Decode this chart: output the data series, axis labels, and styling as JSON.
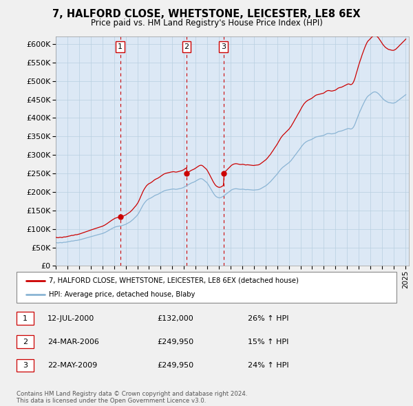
{
  "title": "7, HALFORD CLOSE, WHETSTONE, LEICESTER, LE8 6EX",
  "subtitle": "Price paid vs. HM Land Registry's House Price Index (HPI)",
  "ylim": [
    0,
    620000
  ],
  "yticks": [
    0,
    50000,
    100000,
    150000,
    200000,
    250000,
    300000,
    350000,
    400000,
    450000,
    500000,
    550000,
    600000
  ],
  "xlim_start": 1995.3,
  "xlim_end": 2025.3,
  "sale_color": "#cc0000",
  "hpi_color": "#8ab4d4",
  "sale_label": "7, HALFORD CLOSE, WHETSTONE, LEICESTER, LE8 6EX (detached house)",
  "hpi_label": "HPI: Average price, detached house, Blaby",
  "sales": [
    {
      "date_num": 2000.53,
      "price": 132000,
      "label": "1"
    },
    {
      "date_num": 2006.22,
      "price": 249950,
      "label": "2"
    },
    {
      "date_num": 2009.39,
      "price": 249950,
      "label": "3"
    }
  ],
  "sale_annotations": [
    {
      "label": "1",
      "date": "12-JUL-2000",
      "price": "£132,000",
      "change": "26% ↑ HPI"
    },
    {
      "label": "2",
      "date": "24-MAR-2006",
      "price": "£249,950",
      "change": "15% ↑ HPI"
    },
    {
      "label": "3",
      "date": "22-MAY-2009",
      "price": "£249,950",
      "change": "24% ↑ HPI"
    }
  ],
  "footer": "Contains HM Land Registry data © Crown copyright and database right 2024.\nThis data is licensed under the Open Government Licence v3.0.",
  "hpi_raw": [
    [
      1995.04,
      63000
    ],
    [
      1995.12,
      62500
    ],
    [
      1995.21,
      62200
    ],
    [
      1995.29,
      62800
    ],
    [
      1995.38,
      63200
    ],
    [
      1995.46,
      63000
    ],
    [
      1995.54,
      62500
    ],
    [
      1995.63,
      63500
    ],
    [
      1995.71,
      64000
    ],
    [
      1995.79,
      63800
    ],
    [
      1995.88,
      64200
    ],
    [
      1995.96,
      64800
    ],
    [
      1996.04,
      65200
    ],
    [
      1996.12,
      65800
    ],
    [
      1996.21,
      66200
    ],
    [
      1996.29,
      66800
    ],
    [
      1996.38,
      67500
    ],
    [
      1996.46,
      67200
    ],
    [
      1996.54,
      67800
    ],
    [
      1996.63,
      68500
    ],
    [
      1996.71,
      69000
    ],
    [
      1996.79,
      68800
    ],
    [
      1996.88,
      69500
    ],
    [
      1996.96,
      70000
    ],
    [
      1997.04,
      70500
    ],
    [
      1997.12,
      71200
    ],
    [
      1997.21,
      72000
    ],
    [
      1997.29,
      72800
    ],
    [
      1997.38,
      73500
    ],
    [
      1997.46,
      74200
    ],
    [
      1997.54,
      75000
    ],
    [
      1997.63,
      75800
    ],
    [
      1997.71,
      76500
    ],
    [
      1997.79,
      77200
    ],
    [
      1997.88,
      78000
    ],
    [
      1997.96,
      78800
    ],
    [
      1998.04,
      79500
    ],
    [
      1998.12,
      80200
    ],
    [
      1998.21,
      81000
    ],
    [
      1998.29,
      81800
    ],
    [
      1998.38,
      82500
    ],
    [
      1998.46,
      83200
    ],
    [
      1998.54,
      83800
    ],
    [
      1998.63,
      84500
    ],
    [
      1998.71,
      85200
    ],
    [
      1998.79,
      85800
    ],
    [
      1998.88,
      86500
    ],
    [
      1998.96,
      87200
    ],
    [
      1999.04,
      88000
    ],
    [
      1999.12,
      89000
    ],
    [
      1999.21,
      90200
    ],
    [
      1999.29,
      91500
    ],
    [
      1999.38,
      93000
    ],
    [
      1999.46,
      94500
    ],
    [
      1999.54,
      96000
    ],
    [
      1999.63,
      97500
    ],
    [
      1999.71,
      99000
    ],
    [
      1999.79,
      100500
    ],
    [
      1999.88,
      102000
    ],
    [
      1999.96,
      103500
    ],
    [
      2000.04,
      104500
    ],
    [
      2000.12,
      105500
    ],
    [
      2000.21,
      106200
    ],
    [
      2000.29,
      106800
    ],
    [
      2000.38,
      107200
    ],
    [
      2000.46,
      107500
    ],
    [
      2000.54,
      107800
    ],
    [
      2000.63,
      108500
    ],
    [
      2000.71,
      109200
    ],
    [
      2000.79,
      110000
    ],
    [
      2000.88,
      111000
    ],
    [
      2000.96,
      112000
    ],
    [
      2001.04,
      113000
    ],
    [
      2001.12,
      114500
    ],
    [
      2001.21,
      116000
    ],
    [
      2001.29,
      117500
    ],
    [
      2001.38,
      119000
    ],
    [
      2001.46,
      121000
    ],
    [
      2001.54,
      123000
    ],
    [
      2001.63,
      125500
    ],
    [
      2001.71,
      128000
    ],
    [
      2001.79,
      130500
    ],
    [
      2001.88,
      133000
    ],
    [
      2001.96,
      136000
    ],
    [
      2002.04,
      139000
    ],
    [
      2002.12,
      143000
    ],
    [
      2002.21,
      148000
    ],
    [
      2002.29,
      153000
    ],
    [
      2002.38,
      158000
    ],
    [
      2002.46,
      163000
    ],
    [
      2002.54,
      167000
    ],
    [
      2002.63,
      171000
    ],
    [
      2002.71,
      174000
    ],
    [
      2002.79,
      177000
    ],
    [
      2002.88,
      179000
    ],
    [
      2002.96,
      181000
    ],
    [
      2003.04,
      182000
    ],
    [
      2003.12,
      183000
    ],
    [
      2003.21,
      184500
    ],
    [
      2003.29,
      186000
    ],
    [
      2003.38,
      188000
    ],
    [
      2003.46,
      189500
    ],
    [
      2003.54,
      191000
    ],
    [
      2003.63,
      192000
    ],
    [
      2003.71,
      193000
    ],
    [
      2003.79,
      194000
    ],
    [
      2003.88,
      195500
    ],
    [
      2003.96,
      197000
    ],
    [
      2004.04,
      198500
    ],
    [
      2004.12,
      200000
    ],
    [
      2004.21,
      201500
    ],
    [
      2004.29,
      202800
    ],
    [
      2004.38,
      203800
    ],
    [
      2004.46,
      204500
    ],
    [
      2004.54,
      205000
    ],
    [
      2004.63,
      205500
    ],
    [
      2004.71,
      206000
    ],
    [
      2004.79,
      206500
    ],
    [
      2004.88,
      207000
    ],
    [
      2004.96,
      207500
    ],
    [
      2005.04,
      207800
    ],
    [
      2005.12,
      208000
    ],
    [
      2005.21,
      207500
    ],
    [
      2005.29,
      207000
    ],
    [
      2005.38,
      207200
    ],
    [
      2005.46,
      207800
    ],
    [
      2005.54,
      208500
    ],
    [
      2005.63,
      209000
    ],
    [
      2005.71,
      209500
    ],
    [
      2005.79,
      210000
    ],
    [
      2005.88,
      211000
    ],
    [
      2005.96,
      212000
    ],
    [
      2006.04,
      213500
    ],
    [
      2006.12,
      215000
    ],
    [
      2006.21,
      216500
    ],
    [
      2006.29,
      218000
    ],
    [
      2006.38,
      219500
    ],
    [
      2006.46,
      221000
    ],
    [
      2006.54,
      222500
    ],
    [
      2006.63,
      224000
    ],
    [
      2006.71,
      225000
    ],
    [
      2006.79,
      226000
    ],
    [
      2006.88,
      227000
    ],
    [
      2006.96,
      228500
    ],
    [
      2007.04,
      230000
    ],
    [
      2007.12,
      231500
    ],
    [
      2007.21,
      233000
    ],
    [
      2007.29,
      234500
    ],
    [
      2007.38,
      235500
    ],
    [
      2007.46,
      236000
    ],
    [
      2007.54,
      235500
    ],
    [
      2007.63,
      234000
    ],
    [
      2007.71,
      232000
    ],
    [
      2007.79,
      230000
    ],
    [
      2007.88,
      228000
    ],
    [
      2007.96,
      225500
    ],
    [
      2008.04,
      222000
    ],
    [
      2008.12,
      218000
    ],
    [
      2008.21,
      213500
    ],
    [
      2008.29,
      209000
    ],
    [
      2008.38,
      204500
    ],
    [
      2008.46,
      200000
    ],
    [
      2008.54,
      196000
    ],
    [
      2008.63,
      192000
    ],
    [
      2008.71,
      189000
    ],
    [
      2008.79,
      187000
    ],
    [
      2008.88,
      185500
    ],
    [
      2008.96,
      184500
    ],
    [
      2009.04,
      184000
    ],
    [
      2009.12,
      184500
    ],
    [
      2009.21,
      185500
    ],
    [
      2009.29,
      187000
    ],
    [
      2009.38,
      188500
    ],
    [
      2009.46,
      190500
    ],
    [
      2009.54,
      192500
    ],
    [
      2009.63,
      194500
    ],
    [
      2009.71,
      196500
    ],
    [
      2009.79,
      198500
    ],
    [
      2009.88,
      200500
    ],
    [
      2009.96,
      202500
    ],
    [
      2010.04,
      204500
    ],
    [
      2010.12,
      206000
    ],
    [
      2010.21,
      207200
    ],
    [
      2010.29,
      208000
    ],
    [
      2010.38,
      208500
    ],
    [
      2010.46,
      208800
    ],
    [
      2010.54,
      208500
    ],
    [
      2010.63,
      208000
    ],
    [
      2010.71,
      207500
    ],
    [
      2010.79,
      207200
    ],
    [
      2010.88,
      207000
    ],
    [
      2010.96,
      207200
    ],
    [
      2011.04,
      207500
    ],
    [
      2011.12,
      207200
    ],
    [
      2011.21,
      206500
    ],
    [
      2011.29,
      206000
    ],
    [
      2011.38,
      206200
    ],
    [
      2011.46,
      206500
    ],
    [
      2011.54,
      206200
    ],
    [
      2011.63,
      206000
    ],
    [
      2011.71,
      205800
    ],
    [
      2011.79,
      205500
    ],
    [
      2011.88,
      205200
    ],
    [
      2011.96,
      205000
    ],
    [
      2012.04,
      205200
    ],
    [
      2012.12,
      205500
    ],
    [
      2012.21,
      205800
    ],
    [
      2012.29,
      206000
    ],
    [
      2012.38,
      206200
    ],
    [
      2012.46,
      207000
    ],
    [
      2012.54,
      208000
    ],
    [
      2012.63,
      209500
    ],
    [
      2012.71,
      211000
    ],
    [
      2012.79,
      212500
    ],
    [
      2012.88,
      214000
    ],
    [
      2012.96,
      215500
    ],
    [
      2013.04,
      217000
    ],
    [
      2013.12,
      219000
    ],
    [
      2013.21,
      221500
    ],
    [
      2013.29,
      224000
    ],
    [
      2013.38,
      226500
    ],
    [
      2013.46,
      229000
    ],
    [
      2013.54,
      232000
    ],
    [
      2013.63,
      235000
    ],
    [
      2013.71,
      238000
    ],
    [
      2013.79,
      241000
    ],
    [
      2013.88,
      244000
    ],
    [
      2013.96,
      247000
    ],
    [
      2014.04,
      250000
    ],
    [
      2014.12,
      253500
    ],
    [
      2014.21,
      257000
    ],
    [
      2014.29,
      260500
    ],
    [
      2014.38,
      263500
    ],
    [
      2014.46,
      266000
    ],
    [
      2014.54,
      268000
    ],
    [
      2014.63,
      270000
    ],
    [
      2014.71,
      272000
    ],
    [
      2014.79,
      274000
    ],
    [
      2014.88,
      276000
    ],
    [
      2014.96,
      278000
    ],
    [
      2015.04,
      280000
    ],
    [
      2015.12,
      282500
    ],
    [
      2015.21,
      285500
    ],
    [
      2015.29,
      289000
    ],
    [
      2015.38,
      292500
    ],
    [
      2015.46,
      296000
    ],
    [
      2015.54,
      299500
    ],
    [
      2015.63,
      303000
    ],
    [
      2015.71,
      306500
    ],
    [
      2015.79,
      310000
    ],
    [
      2015.88,
      313500
    ],
    [
      2015.96,
      317000
    ],
    [
      2016.04,
      320500
    ],
    [
      2016.12,
      324000
    ],
    [
      2016.21,
      327500
    ],
    [
      2016.29,
      330500
    ],
    [
      2016.38,
      333000
    ],
    [
      2016.46,
      335000
    ],
    [
      2016.54,
      336500
    ],
    [
      2016.63,
      338000
    ],
    [
      2016.71,
      339000
    ],
    [
      2016.79,
      340000
    ],
    [
      2016.88,
      341000
    ],
    [
      2016.96,
      342000
    ],
    [
      2017.04,
      343500
    ],
    [
      2017.12,
      345000
    ],
    [
      2017.21,
      346500
    ],
    [
      2017.29,
      348000
    ],
    [
      2017.38,
      349000
    ],
    [
      2017.46,
      349500
    ],
    [
      2017.54,
      350000
    ],
    [
      2017.63,
      350500
    ],
    [
      2017.71,
      351000
    ],
    [
      2017.79,
      351500
    ],
    [
      2017.88,
      352000
    ],
    [
      2017.96,
      352500
    ],
    [
      2018.04,
      353500
    ],
    [
      2018.12,
      355000
    ],
    [
      2018.21,
      356500
    ],
    [
      2018.29,
      357500
    ],
    [
      2018.38,
      358000
    ],
    [
      2018.46,
      358000
    ],
    [
      2018.54,
      357500
    ],
    [
      2018.63,
      357000
    ],
    [
      2018.71,
      357000
    ],
    [
      2018.79,
      357500
    ],
    [
      2018.88,
      358000
    ],
    [
      2018.96,
      358500
    ],
    [
      2019.04,
      359500
    ],
    [
      2019.12,
      361000
    ],
    [
      2019.21,
      362500
    ],
    [
      2019.29,
      363500
    ],
    [
      2019.38,
      364000
    ],
    [
      2019.46,
      364500
    ],
    [
      2019.54,
      365000
    ],
    [
      2019.63,
      366000
    ],
    [
      2019.71,
      367000
    ],
    [
      2019.79,
      368000
    ],
    [
      2019.88,
      369000
    ],
    [
      2019.96,
      370000
    ],
    [
      2020.04,
      371000
    ],
    [
      2020.12,
      371500
    ],
    [
      2020.21,
      371000
    ],
    [
      2020.29,
      370000
    ],
    [
      2020.38,
      370500
    ],
    [
      2020.46,
      372000
    ],
    [
      2020.54,
      375000
    ],
    [
      2020.63,
      380000
    ],
    [
      2020.71,
      386000
    ],
    [
      2020.79,
      393000
    ],
    [
      2020.88,
      400000
    ],
    [
      2020.96,
      407000
    ],
    [
      2021.04,
      413000
    ],
    [
      2021.12,
      419000
    ],
    [
      2021.21,
      425000
    ],
    [
      2021.29,
      431000
    ],
    [
      2021.38,
      437000
    ],
    [
      2021.46,
      442000
    ],
    [
      2021.54,
      447000
    ],
    [
      2021.63,
      452000
    ],
    [
      2021.71,
      456000
    ],
    [
      2021.79,
      459000
    ],
    [
      2021.88,
      461000
    ],
    [
      2021.96,
      463000
    ],
    [
      2022.04,
      465000
    ],
    [
      2022.12,
      467000
    ],
    [
      2022.21,
      469000
    ],
    [
      2022.29,
      470000
    ],
    [
      2022.38,
      470500
    ],
    [
      2022.46,
      470000
    ],
    [
      2022.54,
      469000
    ],
    [
      2022.63,
      467000
    ],
    [
      2022.71,
      465000
    ],
    [
      2022.79,
      462000
    ],
    [
      2022.88,
      459000
    ],
    [
      2022.96,
      456000
    ],
    [
      2023.04,
      453000
    ],
    [
      2023.12,
      450500
    ],
    [
      2023.21,
      448000
    ],
    [
      2023.29,
      446000
    ],
    [
      2023.38,
      444500
    ],
    [
      2023.46,
      443000
    ],
    [
      2023.54,
      442000
    ],
    [
      2023.63,
      441500
    ],
    [
      2023.71,
      441000
    ],
    [
      2023.79,
      440500
    ],
    [
      2023.88,
      440000
    ],
    [
      2023.96,
      440000
    ],
    [
      2024.04,
      440500
    ],
    [
      2024.12,
      441500
    ],
    [
      2024.21,
      443000
    ],
    [
      2024.29,
      445000
    ],
    [
      2024.38,
      447000
    ],
    [
      2024.46,
      449000
    ],
    [
      2024.54,
      451000
    ],
    [
      2024.63,
      453000
    ],
    [
      2024.71,
      455000
    ],
    [
      2024.79,
      457000
    ],
    [
      2024.88,
      459000
    ],
    [
      2024.96,
      461000
    ],
    [
      2025.04,
      463000
    ]
  ],
  "xtick_years": [
    1995,
    1996,
    1997,
    1998,
    1999,
    2000,
    2001,
    2002,
    2003,
    2004,
    2005,
    2006,
    2007,
    2008,
    2009,
    2010,
    2011,
    2012,
    2013,
    2014,
    2015,
    2016,
    2017,
    2018,
    2019,
    2020,
    2021,
    2022,
    2023,
    2024,
    2025
  ],
  "background_color": "#f0f0f0",
  "plot_bg_color": "#dce8f5",
  "grid_color": "#b8cfe0"
}
